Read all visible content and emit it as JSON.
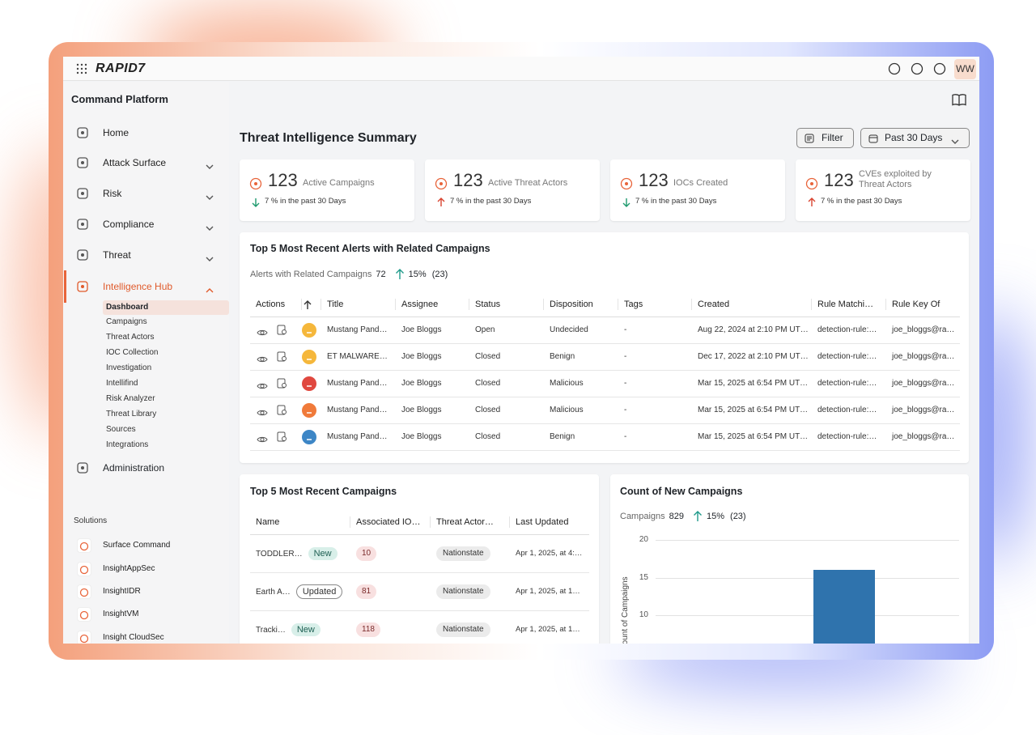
{
  "header": {
    "brand": "RAPID7",
    "user_initials": "WW"
  },
  "sidebar": {
    "title": "Command Platform",
    "nav": [
      {
        "label": "Home",
        "expandable": false,
        "active": false
      },
      {
        "label": "Attack Surface",
        "expandable": true,
        "active": false
      },
      {
        "label": "Risk",
        "expandable": true,
        "active": false
      },
      {
        "label": "Compliance",
        "expandable": true,
        "active": false
      },
      {
        "label": "Threat",
        "expandable": true,
        "active": false
      },
      {
        "label": "Intelligence Hub",
        "expandable": true,
        "active": true
      }
    ],
    "sub_nav": [
      "Dashboard",
      "Campaigns",
      "Threat Actors",
      "IOC Collection",
      "Investigation",
      "Intellifind",
      "Risk Analyzer",
      "Threat Library",
      "Sources",
      "Integrations"
    ],
    "sub_nav_active": 0,
    "admin": "Administration",
    "solutions_title": "Solutions",
    "solutions": [
      "Surface Command",
      "InsightAppSec",
      "InsightIDR",
      "InsightVM",
      "Insight CloudSec"
    ]
  },
  "main": {
    "title": "Threat Intelligence Summary",
    "filter": "Filter",
    "range": "Past 30 Days",
    "stats": [
      {
        "value": 123,
        "label": "Active Campaigns",
        "trend": "down",
        "change": "7 % in the past 30 Days"
      },
      {
        "value": 123,
        "label": "Active Threat Actors",
        "trend": "up",
        "change": "7 % in the past 30 Days"
      },
      {
        "value": 123,
        "label": "IOCs Created",
        "trend": "down",
        "change": "7 % in the past 30 Days"
      },
      {
        "value": 123,
        "label": "CVEs exploited by Threat Actors",
        "trend": "up",
        "change": "7 % in the past 30 Days"
      }
    ],
    "alerts": {
      "title": "Top 5 Most Recent Alerts with Related Campaigns",
      "summary_label": "Alerts with Related Campaigns",
      "summary_value": 72,
      "change": "15%",
      "change_count": "(23)",
      "columns": [
        "Actions",
        "Title",
        "Assignee",
        "Status",
        "Disposition",
        "Tags",
        "Created",
        "Rule Matchi…",
        "Rule Key Of"
      ],
      "rows": [
        {
          "severity": "#f5b73b",
          "cells": [
            "Mustang Pand…",
            "Joe Bloggs",
            "Open",
            "Undecided",
            "-",
            "Aug 22, 2024 at 2:10 PM UT…",
            "detection-rule:…",
            "joe_bloggs@ra…"
          ]
        },
        {
          "severity": "#f5b73b",
          "cells": [
            "ET MALWARE…",
            "Joe Bloggs",
            "Closed",
            "Benign",
            "-",
            "Dec 17, 2022 at 2:10 PM UT…",
            "detection-rule:…",
            "joe_bloggs@ra…"
          ]
        },
        {
          "severity": "#e0483f",
          "cells": [
            "Mustang Pand…",
            "Joe Bloggs",
            "Closed",
            "Malicious",
            "-",
            "Mar 15, 2025 at 6:54 PM UT…",
            "detection-rule:…",
            "joe_bloggs@ra…"
          ]
        },
        {
          "severity": "#f07a3a",
          "cells": [
            "Mustang Pand…",
            "Joe Bloggs",
            "Closed",
            "Malicious",
            "-",
            "Mar 15, 2025 at 6:54 PM UT…",
            "detection-rule:…",
            "joe_bloggs@ra…"
          ]
        },
        {
          "severity": "#3d86c6",
          "cells": [
            "Mustang Pand…",
            "Joe Bloggs",
            "Closed",
            "Benign",
            "-",
            "Mar 15, 2025 at 6:54 PM UT…",
            "detection-rule:…",
            "joe_bloggs@ra…"
          ]
        }
      ]
    },
    "campaigns": {
      "title": "Top 5 Most Recent Campaigns",
      "columns": [
        "Name",
        "Associated IO…",
        "Threat Actor…",
        "Last Updated"
      ],
      "rows": [
        {
          "name": "TODDLER…",
          "badge": "New",
          "badge_style": "new",
          "count": 10,
          "actor": "Nationstate",
          "updated": "Apr 1, 2025, at 4:…"
        },
        {
          "name": "Earth A…",
          "badge": "Updated",
          "badge_style": "updated",
          "count": 81,
          "actor": "Nationstate",
          "updated": "Apr 1, 2025, at 1…"
        },
        {
          "name": "Tracki…",
          "badge": "New",
          "badge_style": "new",
          "count": 118,
          "actor": "Nationstate",
          "updated": "Apr 1, 2025, at 1…"
        }
      ]
    },
    "chart": {
      "type": "bar",
      "title": "Count of New Campaigns",
      "summary_label": "Campaigns",
      "summary_value": 829,
      "change": "15%",
      "change_count": "(23)",
      "y_label": "Count of Campaigns",
      "ylim": [
        0,
        20
      ],
      "yticks": [
        10,
        15,
        20
      ],
      "grid": true,
      "values": [
        16
      ],
      "color": "#2f73ad"
    }
  }
}
